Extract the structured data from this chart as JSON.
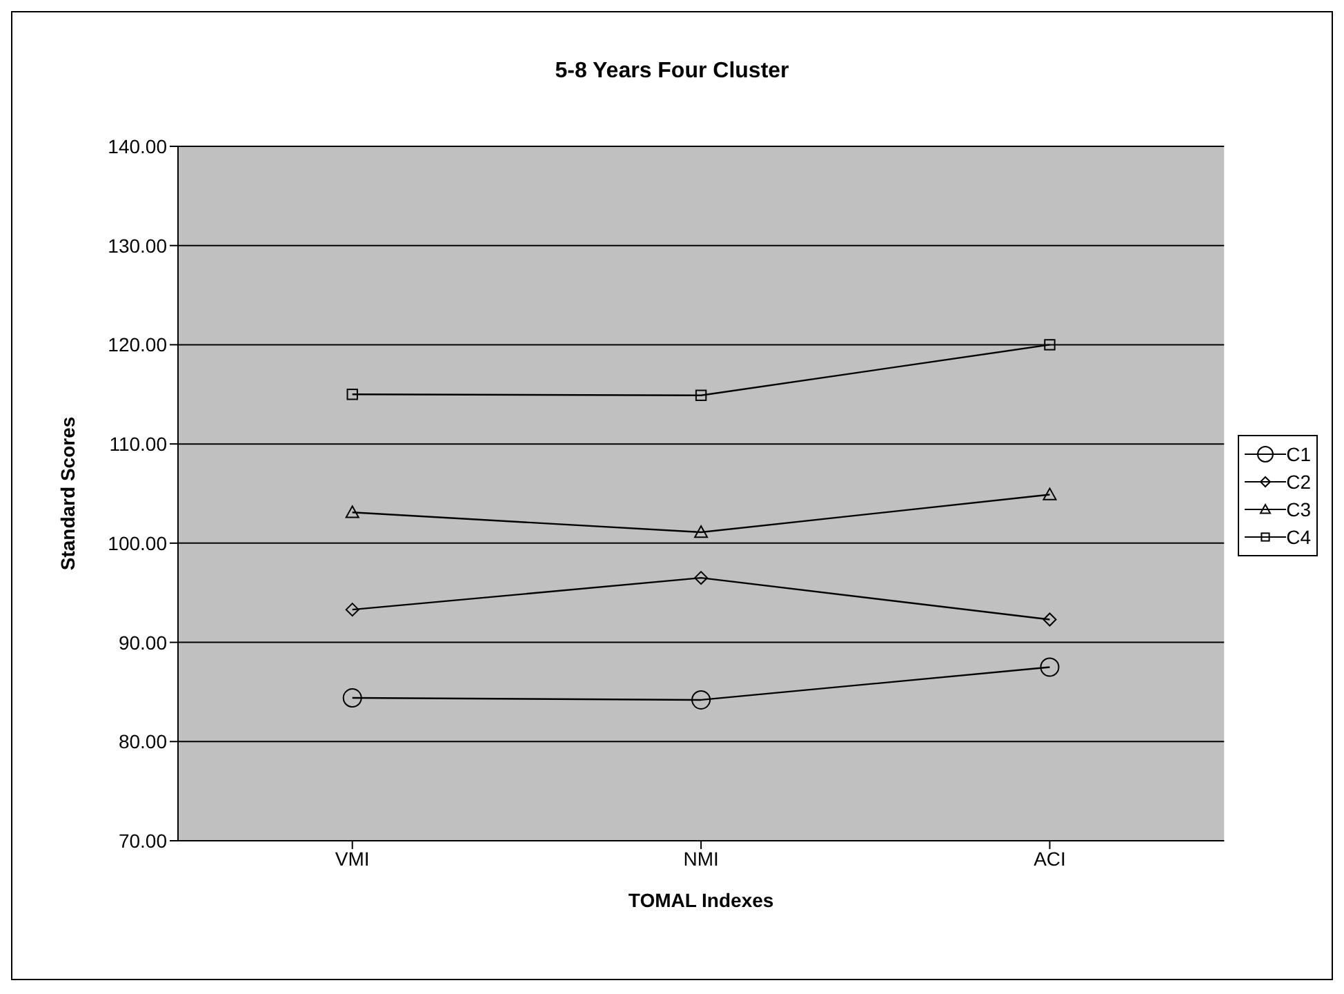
{
  "chart_data": {
    "type": "line",
    "title": "5-8 Years Four Cluster",
    "xlabel": "TOMAL Indexes",
    "ylabel": "Standard Scores",
    "categories": [
      "VMI",
      "NMI",
      "ACI"
    ],
    "series": [
      {
        "name": "C1",
        "color": "#000000",
        "marker": "circle",
        "values": [
          84.4,
          84.2,
          87.5
        ]
      },
      {
        "name": "C2",
        "color": "#000000",
        "marker": "diamond",
        "values": [
          93.3,
          96.5,
          92.3
        ]
      },
      {
        "name": "C3",
        "color": "#000000",
        "marker": "triangle",
        "values": [
          103.1,
          101.1,
          104.9
        ]
      },
      {
        "name": "C4",
        "color": "#000000",
        "marker": "square",
        "values": [
          115.0,
          114.9,
          120.0
        ]
      }
    ],
    "ylim": [
      70,
      140
    ],
    "yticks": [
      {
        "value": 70,
        "label": "70.00"
      },
      {
        "value": 80,
        "label": "80.00"
      },
      {
        "value": 90,
        "label": "90.00"
      },
      {
        "value": 100,
        "label": "100.00"
      },
      {
        "value": 110,
        "label": "110.00"
      },
      {
        "value": 120,
        "label": "120.00"
      },
      {
        "value": 130,
        "label": "130.00"
      },
      {
        "value": 140,
        "label": "140.00"
      }
    ],
    "grid": "y",
    "legend": "right",
    "line_style": "solid"
  }
}
